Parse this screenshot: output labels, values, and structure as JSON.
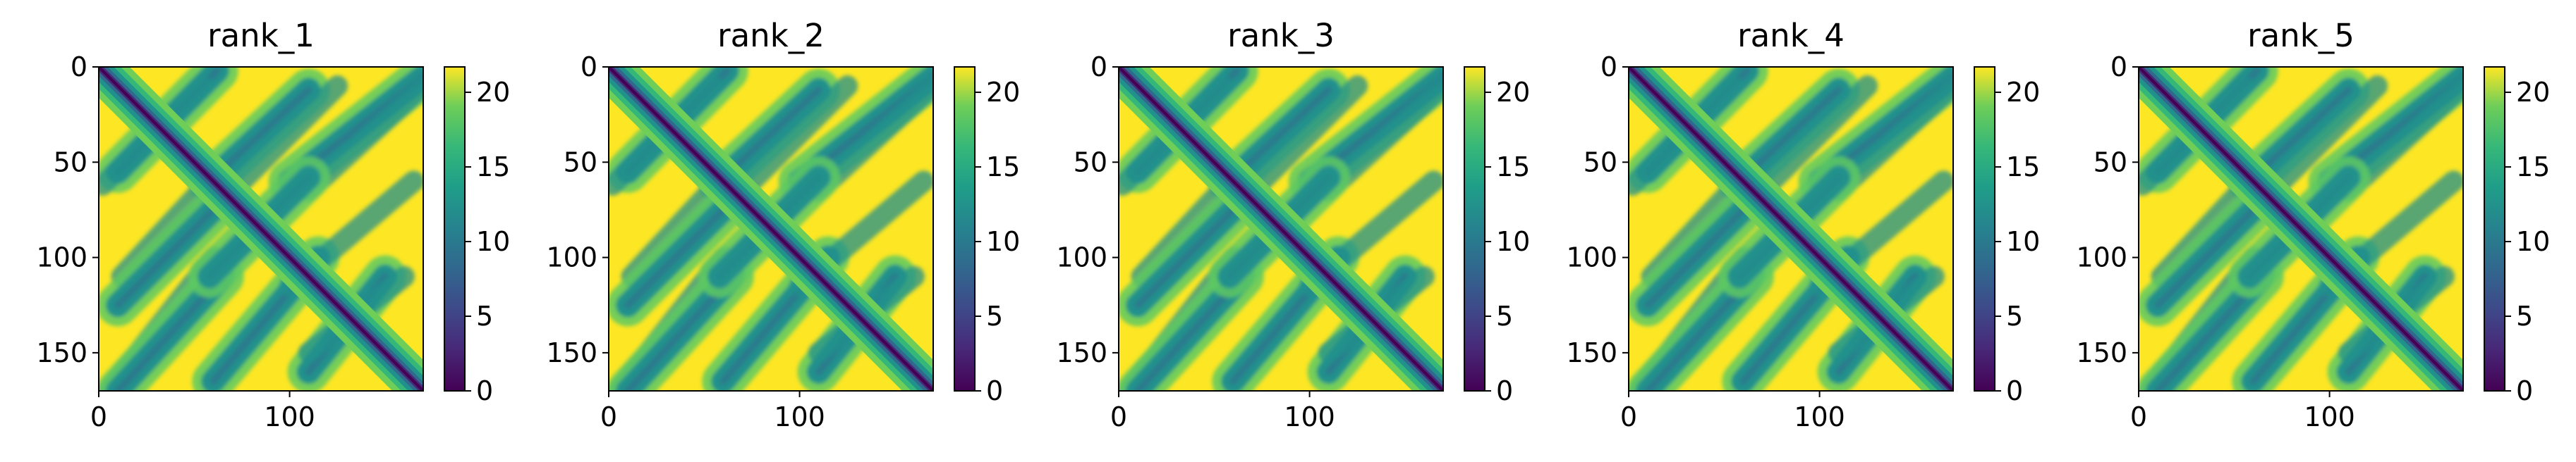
{
  "figure": {
    "description_colormap": "viridis",
    "colorbar_top_color": "#fde725",
    "colorbar_bottom_color": "#440154"
  },
  "chart_data": [
    {
      "type": "heatmap",
      "title": "rank_1",
      "xlim": [
        0,
        170
      ],
      "ylim": [
        170,
        0
      ],
      "x_ticks": [
        0,
        100
      ],
      "y_ticks": [
        0,
        50,
        100,
        150
      ],
      "x_tick_labels": [
        "0",
        "100"
      ],
      "y_tick_labels": [
        "0",
        "50",
        "100",
        "150"
      ],
      "colorbar": {
        "range": [
          0,
          21.7
        ],
        "ticks": [
          0,
          5,
          10,
          15,
          20
        ],
        "tick_labels": [
          "0",
          "5",
          "10",
          "15",
          "20"
        ]
      },
      "residues": 170,
      "contact_segments": [
        {
          "from": [
            0,
            0
          ],
          "to": [
            170,
            170
          ],
          "kind": "diagonal"
        },
        {
          "from": [
            10,
            55
          ],
          "to": [
            62,
            2
          ],
          "kind": "anti-diagonal"
        },
        {
          "from": [
            58,
            60
          ],
          "to": [
            110,
            12
          ],
          "kind": "anti-diagonal"
        },
        {
          "from": [
            100,
            60
          ],
          "to": [
            170,
            5
          ],
          "kind": "anti-diagonal"
        },
        {
          "from": [
            60,
            75
          ],
          "to": [
            10,
            125
          ],
          "kind": "anti-diagonal"
        },
        {
          "from": [
            65,
            110
          ],
          "to": [
            10,
            170
          ],
          "kind": "anti-diagonal"
        },
        {
          "from": [
            110,
            58
          ],
          "to": [
            58,
            110
          ],
          "kind": "anti-diagonal"
        },
        {
          "from": [
            115,
            100
          ],
          "to": [
            60,
            165
          ],
          "kind": "anti-diagonal"
        },
        {
          "from": [
            150,
            110
          ],
          "to": [
            110,
            160
          ],
          "kind": "anti-diagonal"
        }
      ]
    },
    {
      "type": "heatmap",
      "title": "rank_2",
      "xlim": [
        0,
        170
      ],
      "ylim": [
        170,
        0
      ],
      "x_ticks": [
        0,
        100
      ],
      "y_ticks": [
        0,
        50,
        100,
        150
      ],
      "x_tick_labels": [
        "0",
        "100"
      ],
      "y_tick_labels": [
        "0",
        "50",
        "100",
        "150"
      ],
      "colorbar": {
        "range": [
          0,
          21.7
        ],
        "ticks": [
          0,
          5,
          10,
          15,
          20
        ],
        "tick_labels": [
          "0",
          "5",
          "10",
          "15",
          "20"
        ]
      },
      "residues": 170
    },
    {
      "type": "heatmap",
      "title": "rank_3",
      "xlim": [
        0,
        170
      ],
      "ylim": [
        170,
        0
      ],
      "x_ticks": [
        0,
        100
      ],
      "y_ticks": [
        0,
        50,
        100,
        150
      ],
      "x_tick_labels": [
        "0",
        "100"
      ],
      "y_tick_labels": [
        "0",
        "50",
        "100",
        "150"
      ],
      "colorbar": {
        "range": [
          0,
          21.7
        ],
        "ticks": [
          0,
          5,
          10,
          15,
          20
        ],
        "tick_labels": [
          "0",
          "5",
          "10",
          "15",
          "20"
        ]
      },
      "residues": 170
    },
    {
      "type": "heatmap",
      "title": "rank_4",
      "xlim": [
        0,
        170
      ],
      "ylim": [
        170,
        0
      ],
      "x_ticks": [
        0,
        100
      ],
      "y_ticks": [
        0,
        50,
        100,
        150
      ],
      "x_tick_labels": [
        "0",
        "100"
      ],
      "y_tick_labels": [
        "0",
        "50",
        "100",
        "150"
      ],
      "colorbar": {
        "range": [
          0,
          21.7
        ],
        "ticks": [
          0,
          5,
          10,
          15,
          20
        ],
        "tick_labels": [
          "0",
          "5",
          "10",
          "15",
          "20"
        ]
      },
      "residues": 170
    },
    {
      "type": "heatmap",
      "title": "rank_5",
      "xlim": [
        0,
        170
      ],
      "ylim": [
        170,
        0
      ],
      "x_ticks": [
        0,
        100
      ],
      "y_ticks": [
        0,
        50,
        100,
        150
      ],
      "x_tick_labels": [
        "0",
        "100"
      ],
      "y_tick_labels": [
        "0",
        "50",
        "100",
        "150"
      ],
      "colorbar": {
        "range": [
          0,
          21.7
        ],
        "ticks": [
          0,
          5,
          10,
          15,
          20
        ],
        "tick_labels": [
          "0",
          "5",
          "10",
          "15",
          "20"
        ]
      },
      "residues": 170
    }
  ]
}
